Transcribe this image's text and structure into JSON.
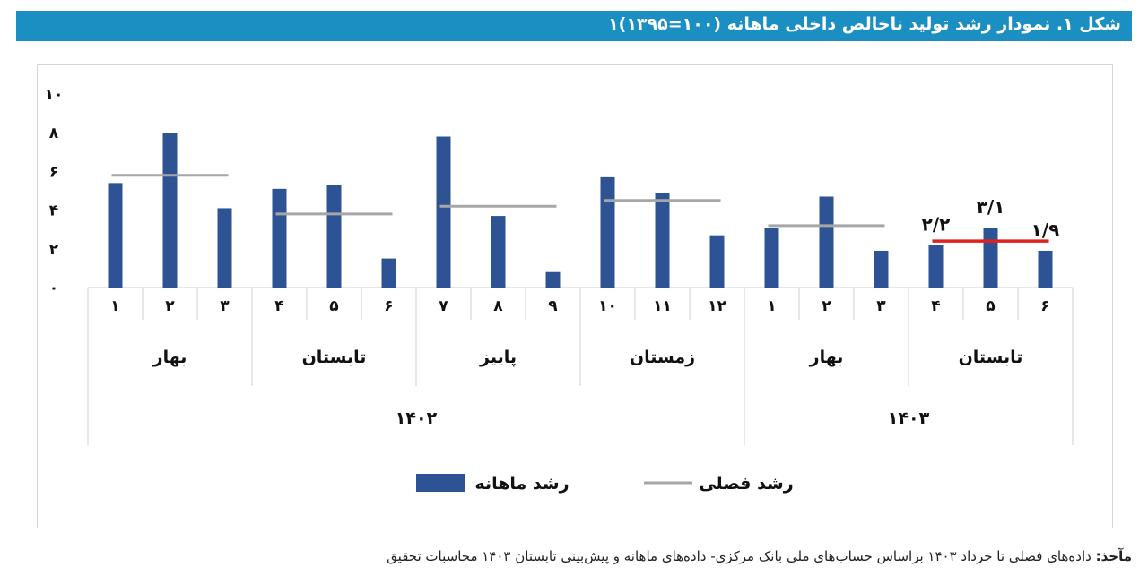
{
  "title": "شکل ۱. نمودار رشد تولید ناخالص داخلی ماهانه (۱۰۰=۱۳۹۵)۱",
  "source": {
    "label": "مآخذ:",
    "text": "داده‌های فصلی تا خرداد ۱۴۰۳ براساس حساب‌های ملی بانک مرکزی- داده‌های ماهانه و پیش‌بینی تابستان ۱۴۰۳ محاسبات تحقیق"
  },
  "colors": {
    "bar": "#2e5395",
    "seasonal": "#a6a6a6",
    "highlight": "#e0211e",
    "title_bg": "#1b8fc2"
  },
  "chart_data": {
    "type": "bar",
    "ylim": [
      0,
      10
    ],
    "yticks": [
      "۰",
      "۲",
      "۴",
      "۶",
      "۸",
      "۱۰"
    ],
    "month_labels": [
      "۱",
      "۲",
      "۳",
      "۴",
      "۵",
      "۶",
      "۷",
      "۸",
      "۹",
      "۱۰",
      "۱۱",
      "۱۲",
      "۱",
      "۲",
      "۳",
      "۴",
      "۵",
      "۶"
    ],
    "seasons": [
      "بهار",
      "تابستان",
      "پاییز",
      "زمستان",
      "بهار",
      "تابستان"
    ],
    "years": [
      "۱۴۰۲",
      "۱۴۰۳"
    ],
    "series": [
      {
        "name": "رشد ماهانه",
        "values": [
          5.4,
          8.0,
          4.1,
          5.1,
          5.3,
          1.5,
          7.8,
          3.7,
          0.8,
          5.7,
          4.9,
          2.7,
          3.1,
          4.7,
          1.9,
          2.2,
          3.1,
          1.9
        ]
      },
      {
        "name": "رشد فصلی",
        "values": [
          5.8,
          3.8,
          4.2,
          4.5,
          3.2,
          2.4
        ]
      }
    ],
    "annotations": [
      "۲/۲",
      "۳/۱",
      "۱/۹"
    ]
  }
}
